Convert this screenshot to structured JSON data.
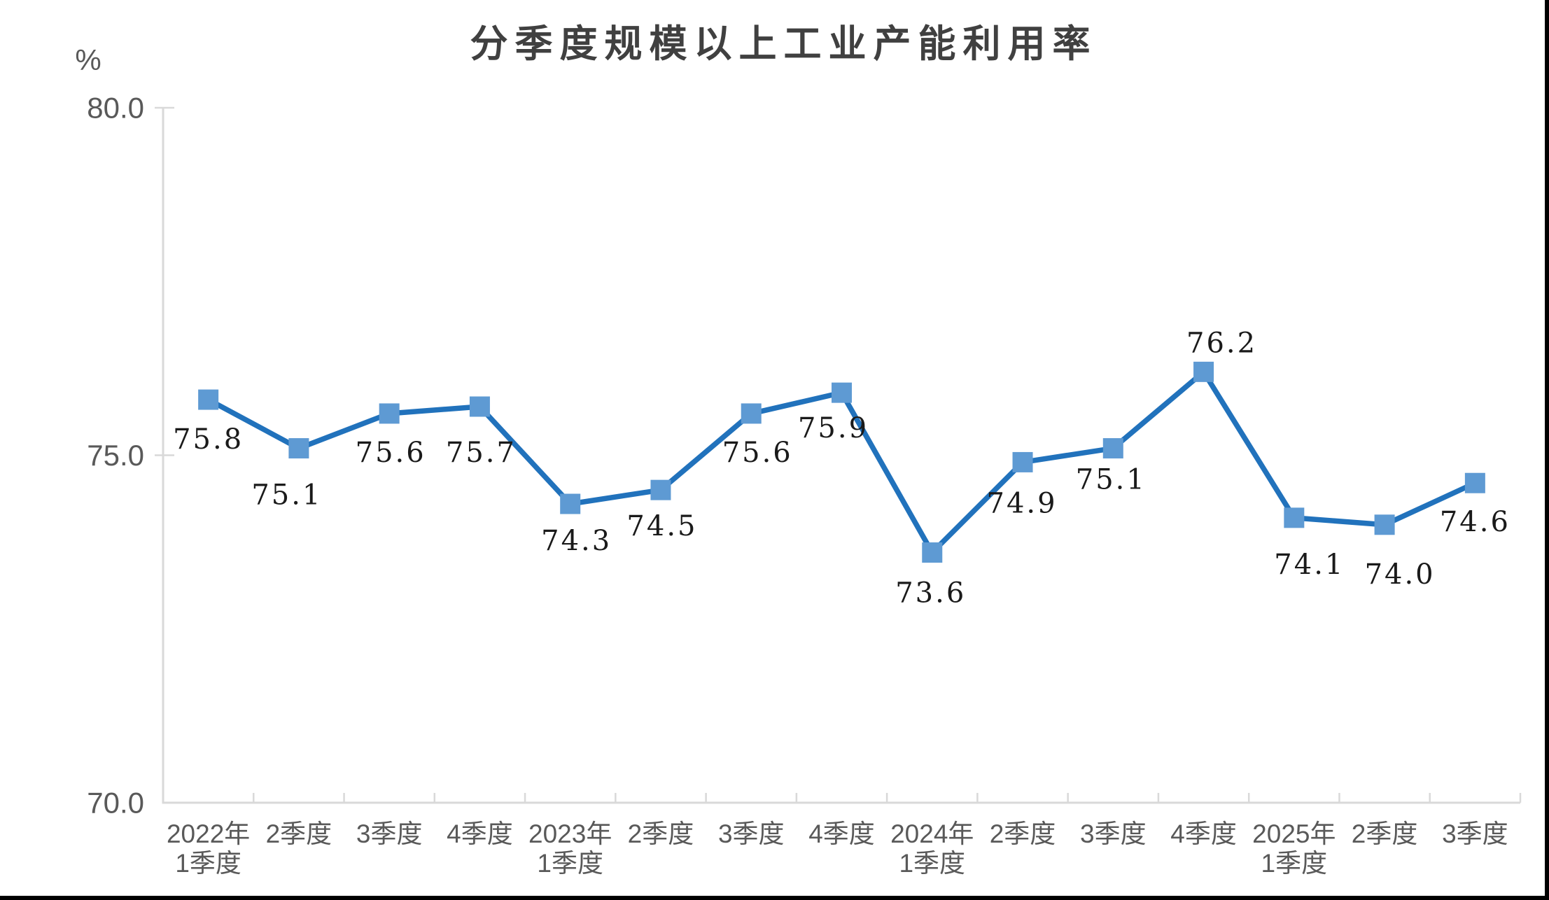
{
  "chart_data": {
    "type": "line",
    "title": "分季度规模以上工业产能利用率",
    "unit": "%",
    "categories": [
      "2022年\n1季度",
      "2季度",
      "3季度",
      "4季度",
      "2023年\n1季度",
      "2季度",
      "3季度",
      "4季度",
      "2024年\n1季度",
      "2季度",
      "3季度",
      "4季度",
      "2025年\n1季度",
      "2季度",
      "3季度"
    ],
    "values": [
      75.8,
      75.1,
      75.6,
      75.7,
      74.3,
      74.5,
      75.6,
      75.9,
      73.6,
      74.9,
      75.1,
      76.2,
      74.1,
      74.0,
      74.6
    ],
    "data_labels": [
      "75.8",
      "75.1",
      "75.6",
      "75.7",
      "74.3",
      "74.5",
      "75.6",
      "75.9",
      "73.6",
      "74.9",
      "75.1",
      "76.2",
      "74.1",
      "74.0",
      "74.6"
    ],
    "xlabel": "",
    "ylabel": "%",
    "ylim": [
      70.0,
      80.0
    ],
    "yticks": [
      {
        "label": "80.0",
        "value": 80.0
      },
      {
        "label": "75.0",
        "value": 75.0
      },
      {
        "label": "70.0",
        "value": 70.0
      }
    ],
    "grid": "off",
    "legend": "none",
    "marker_shape": "square",
    "colors": {
      "line": "#2172BC",
      "marker": "#5E9AD3",
      "axis": "#D9D9D9",
      "axis_text": "#595959",
      "data_label_text": "#1A1A1A",
      "title_text": "#404040",
      "page_edge": "#000000"
    }
  }
}
